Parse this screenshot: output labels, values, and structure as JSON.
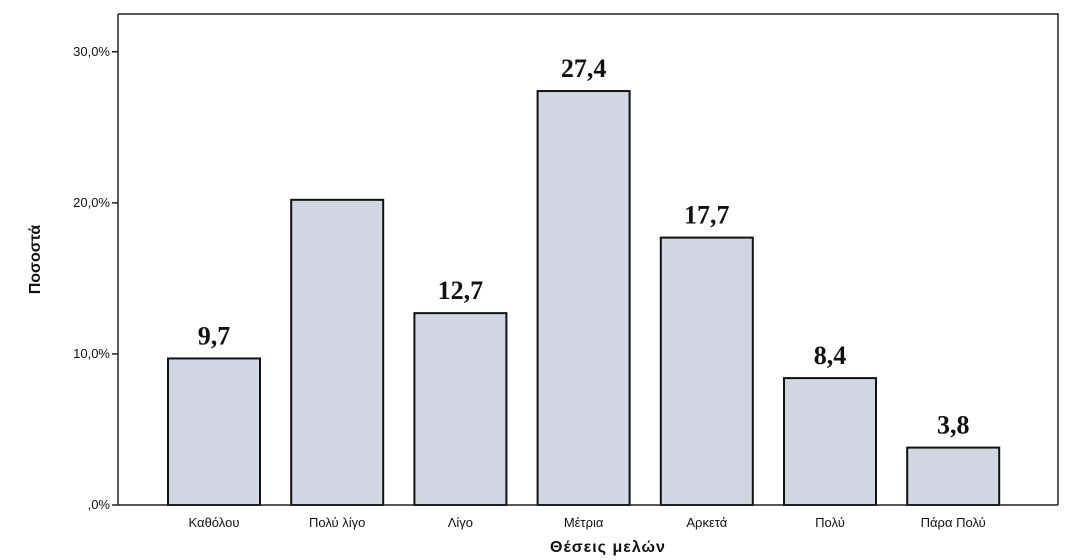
{
  "chart_data": {
    "type": "bar",
    "title": "",
    "xlabel": "Θέσεις μελών",
    "ylabel": "Ποσοστά",
    "categories": [
      "Καθόλου",
      "Πολύ λίγο",
      "Λίγο",
      "Μέτρια",
      "Αρκετά",
      "Πολύ",
      "Πάρα Πολύ"
    ],
    "values": [
      9.7,
      20.2,
      12.7,
      27.4,
      17.7,
      8.4,
      3.8
    ],
    "data_labels": [
      "9,7",
      "",
      "12,7",
      "27,4",
      "17,7",
      "8,4",
      "3,8"
    ],
    "ylim": [
      0,
      32.5
    ],
    "yticks": [
      0,
      10,
      20,
      30
    ],
    "ytick_labels": [
      ",0%",
      "10,0%",
      "20,0%",
      "30,0%"
    ],
    "grid": false,
    "legend": "none",
    "colors": {
      "bar_fill": "#d2d6e2",
      "bar_stroke": "#111111",
      "axis": "#222222",
      "frame": "#222222"
    }
  }
}
